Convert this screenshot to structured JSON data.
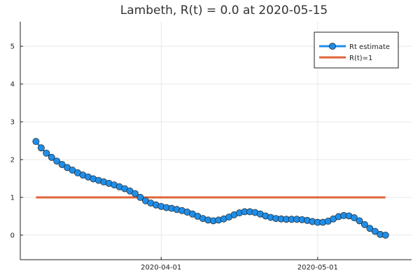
{
  "chart_data": {
    "type": "line",
    "title": "Lambeth, R(t) = 0.0 at 2020-05-15",
    "xlabel": "",
    "ylabel": "",
    "x_start": "2020-03-08",
    "x_step_days": 1,
    "xlim": [
      "2020-03-05",
      "2020-05-19"
    ],
    "ylim": [
      -0.65,
      5.65
    ],
    "y_ticks": [
      0,
      1,
      2,
      3,
      4,
      5
    ],
    "x_ticks": [
      "2020-04-01",
      "2020-05-01"
    ],
    "grid": true,
    "legend_position": "top-right",
    "series": [
      {
        "name": "Rt estimate",
        "color": "#1f8ee8",
        "marker": "circle",
        "values": [
          2.48,
          2.31,
          2.17,
          2.06,
          1.96,
          1.87,
          1.79,
          1.72,
          1.65,
          1.59,
          1.54,
          1.49,
          1.45,
          1.41,
          1.37,
          1.33,
          1.28,
          1.23,
          1.17,
          1.1,
          1.0,
          0.91,
          0.85,
          0.8,
          0.76,
          0.73,
          0.71,
          0.68,
          0.65,
          0.61,
          0.56,
          0.5,
          0.44,
          0.4,
          0.38,
          0.4,
          0.43,
          0.48,
          0.54,
          0.59,
          0.62,
          0.62,
          0.6,
          0.56,
          0.51,
          0.47,
          0.44,
          0.43,
          0.42,
          0.42,
          0.42,
          0.41,
          0.39,
          0.36,
          0.34,
          0.34,
          0.37,
          0.43,
          0.49,
          0.52,
          0.51,
          0.46,
          0.38,
          0.28,
          0.18,
          0.1,
          0.02,
          0.0
        ]
      },
      {
        "name": "R(t)=1",
        "color": "#e0653a",
        "marker": "none",
        "values": [
          1,
          1
        ]
      }
    ]
  }
}
